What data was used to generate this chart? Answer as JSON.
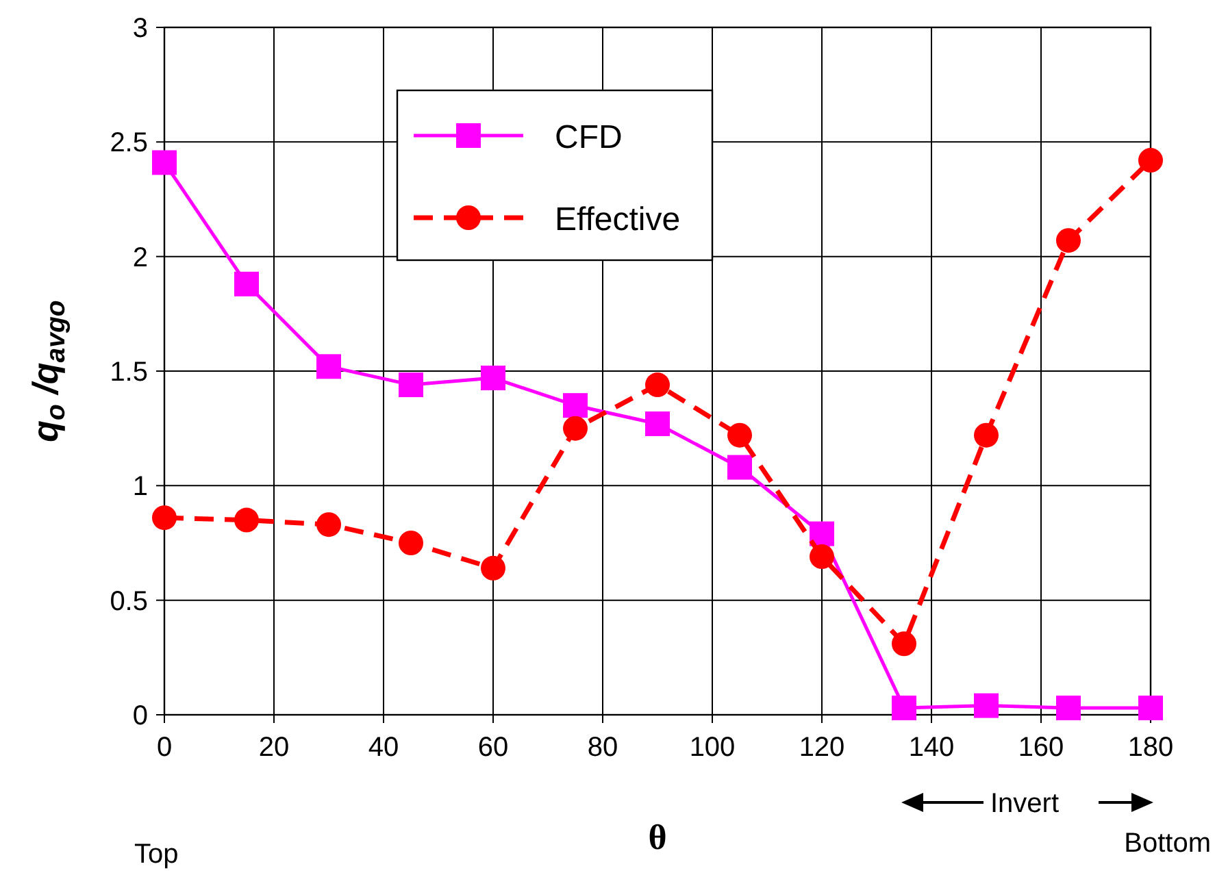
{
  "chart_data": {
    "type": "line",
    "xlabel": "θ",
    "ylabel": "q$_{o}$ /q$_{avgo}$",
    "x": [
      0,
      15,
      30,
      45,
      60,
      75,
      90,
      105,
      120,
      135,
      150,
      165,
      180
    ],
    "series": [
      {
        "name": "CFD",
        "color": "#ff00ff",
        "marker": "square",
        "line_style": "solid",
        "values": [
          2.41,
          1.88,
          1.52,
          1.44,
          1.47,
          1.35,
          1.27,
          1.08,
          0.79,
          0.03,
          0.04,
          0.03,
          0.03
        ]
      },
      {
        "name": "Effective",
        "color": "#ff0000",
        "marker": "circle",
        "line_style": "dashed",
        "values": [
          0.86,
          0.85,
          0.83,
          0.75,
          0.64,
          1.25,
          1.44,
          1.22,
          0.69,
          0.31,
          1.22,
          2.07,
          2.42
        ]
      }
    ],
    "xlim": [
      0,
      180
    ],
    "xticks": [
      0,
      20,
      40,
      60,
      80,
      100,
      120,
      140,
      160,
      180
    ],
    "ylim": [
      0,
      3
    ],
    "yticks": [
      0,
      0.5,
      1,
      1.5,
      2,
      2.5,
      3
    ],
    "grid": true,
    "legend": "top",
    "annotations": [
      "Top",
      "Invert",
      "Bottom"
    ]
  }
}
